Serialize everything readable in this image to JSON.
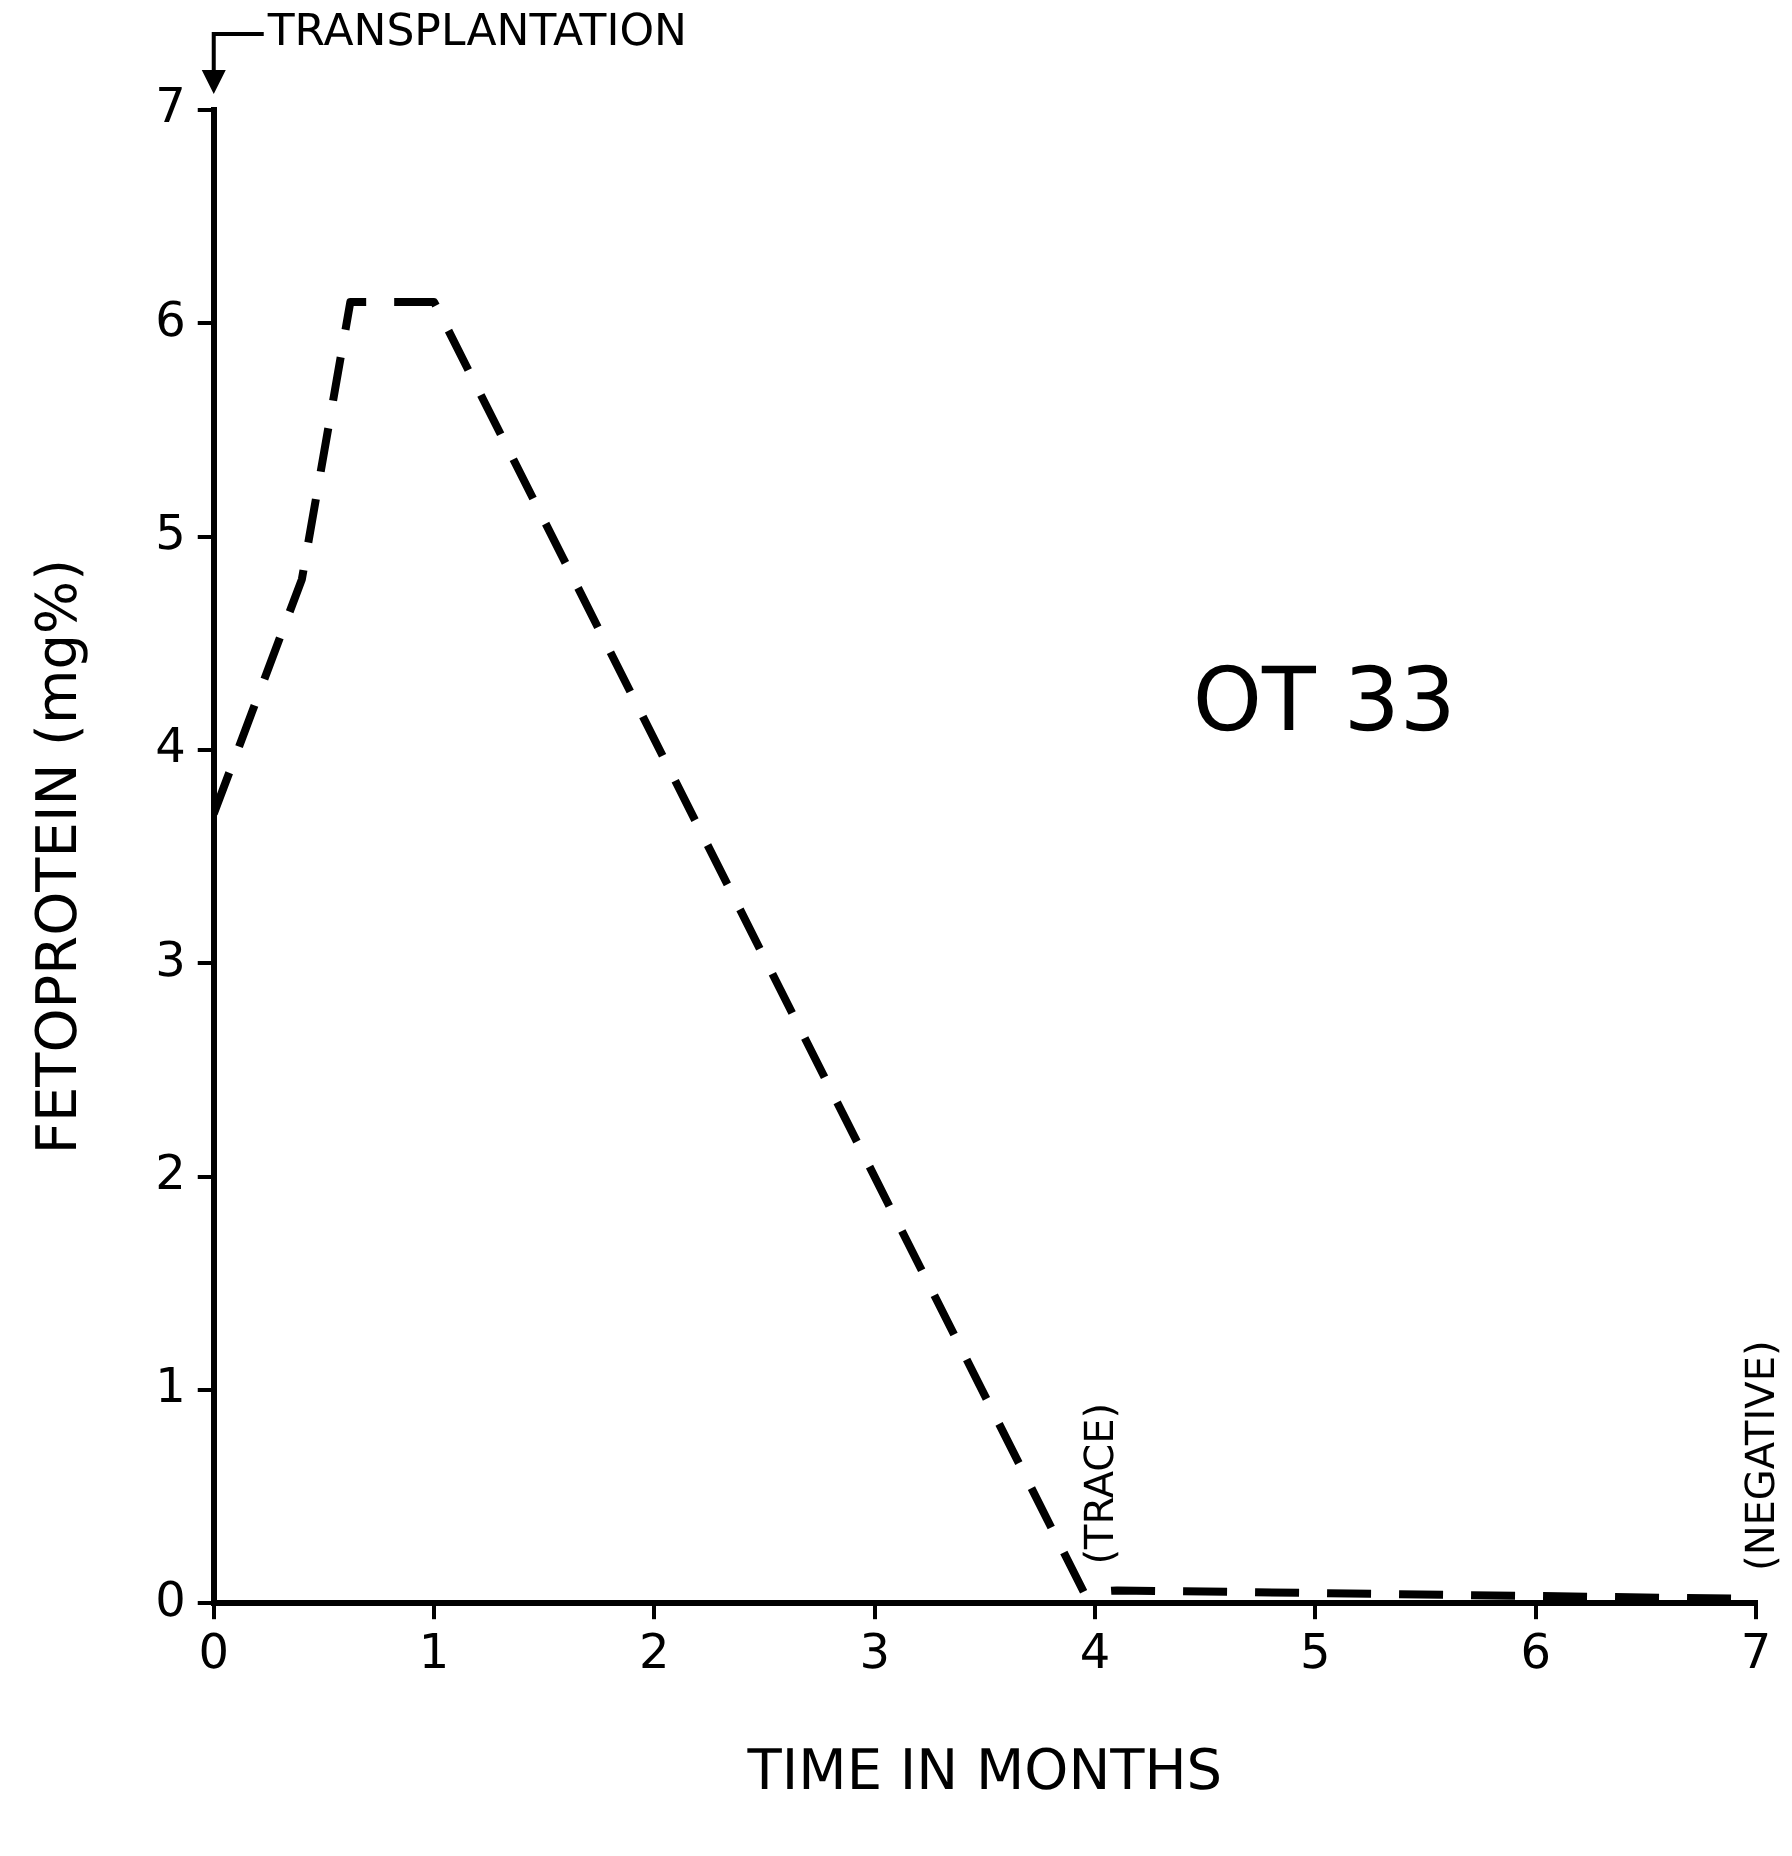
{
  "chart_data": {
    "type": "line",
    "xlabel": "TIME IN MONTHS",
    "ylabel": "FETOPROTEIN (mg%)",
    "x": [
      0,
      0.4,
      0.62,
      1,
      3.95,
      4.1,
      7
    ],
    "series": [
      {
        "color": "#000000",
        "values": [
          3.7,
          4.8,
          6.1,
          6.1,
          0.05,
          0.06,
          0.02
        ]
      }
    ],
    "xlim": [
      0,
      7
    ],
    "ylim": [
      0,
      7
    ],
    "xticks": [
      0,
      1,
      2,
      3,
      4,
      5,
      6,
      7
    ],
    "yticks": [
      0,
      1,
      2,
      3,
      4,
      5,
      6,
      7
    ],
    "grid": false,
    "legend": false,
    "marker": "none",
    "line_style": "dashed",
    "annotations": [
      "TRANSPLANTATION",
      "OT 33",
      {
        "text": "(TRACE)",
        "x": 4,
        "y": 0.05
      },
      {
        "text": "(NEGATIVE)",
        "x": 7,
        "y": 0.02
      }
    ]
  }
}
